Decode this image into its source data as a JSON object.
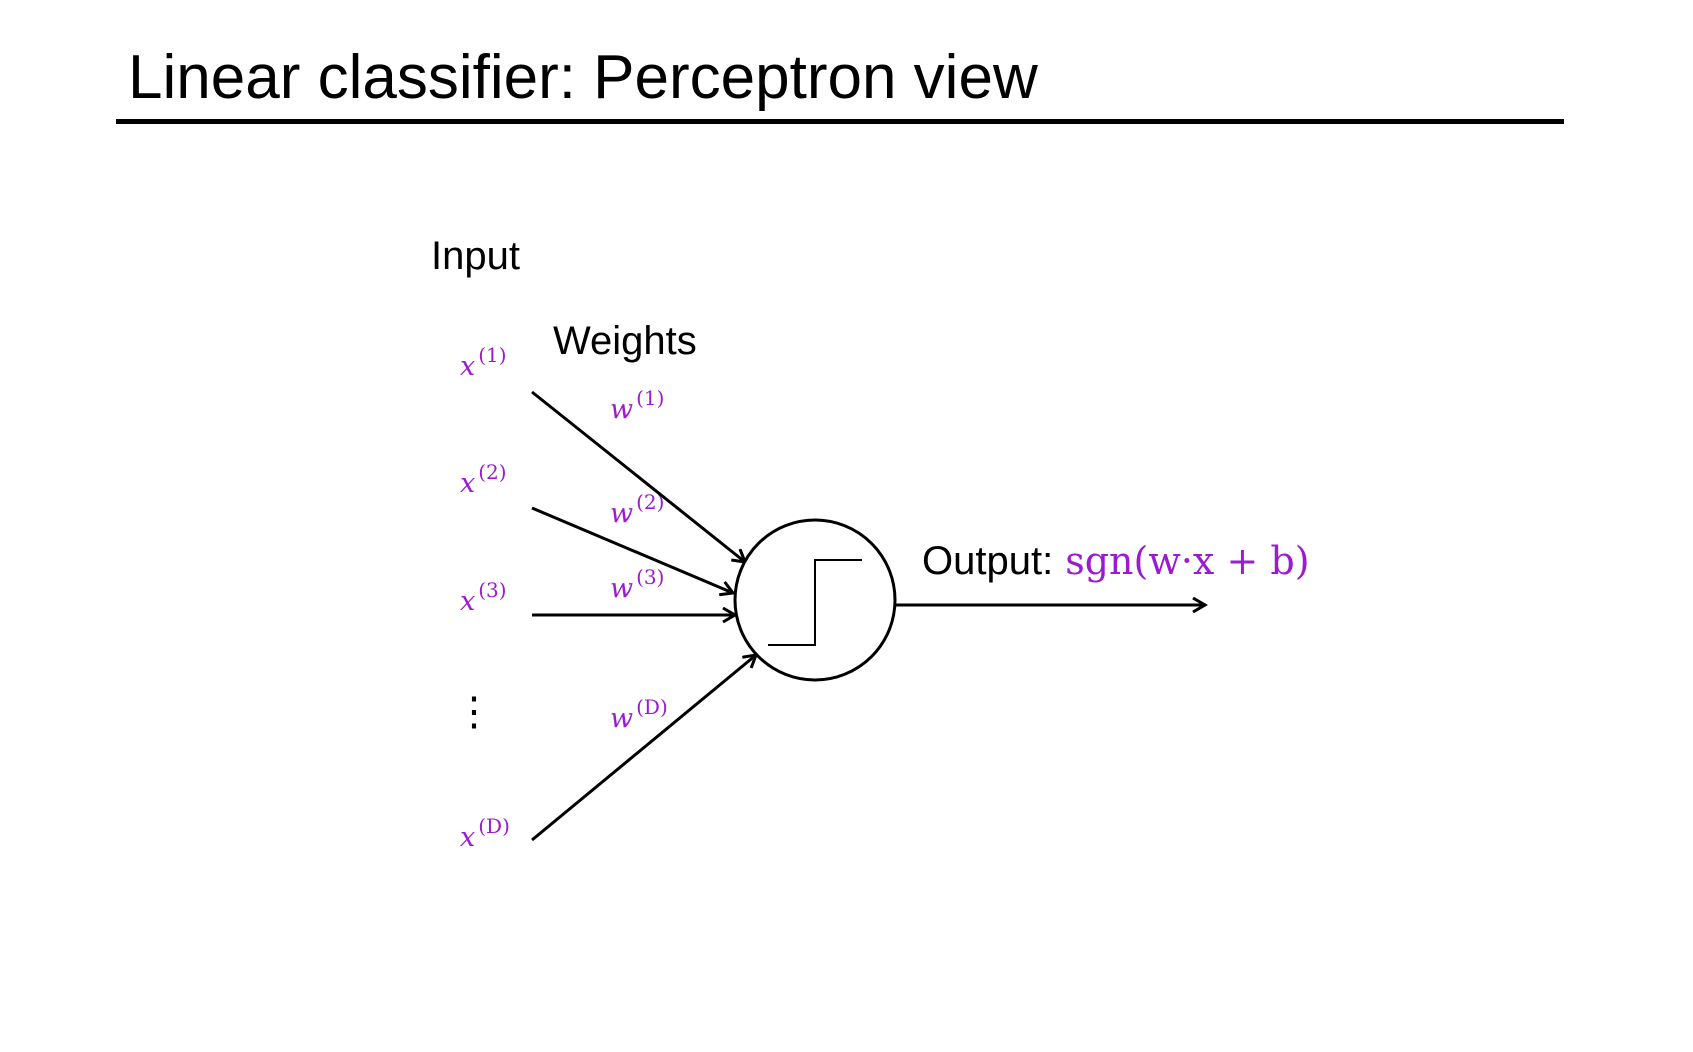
{
  "slide": {
    "title": "Linear classifier: Perceptron view"
  },
  "diagram": {
    "input_label": "Input",
    "weights_label": "Weights",
    "output_label": "Output:",
    "output_formula": "sgn(w·x  +  b)",
    "ellipsis": "⋮",
    "inputs": [
      {
        "var": "x",
        "index": "(1)"
      },
      {
        "var": "x",
        "index": "(2)"
      },
      {
        "var": "x",
        "index": "(3)"
      },
      {
        "var": "x",
        "index": "(D)"
      }
    ],
    "weights": [
      {
        "var": "w",
        "index": "(1)"
      },
      {
        "var": "w",
        "index": "(2)"
      },
      {
        "var": "w",
        "index": "(3)"
      },
      {
        "var": "w",
        "index": "(D)"
      }
    ],
    "activation_icon": "step-function-icon",
    "math_color": "#9b1bd0"
  }
}
